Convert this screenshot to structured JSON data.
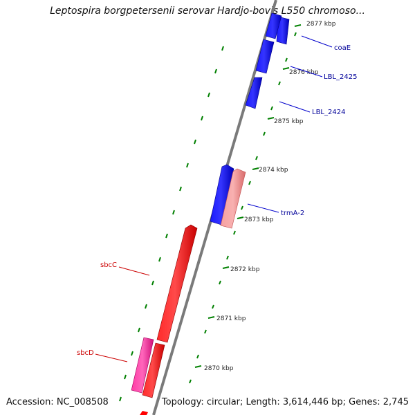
{
  "header": {
    "title": "Leptospira borgpetersenii serovar Hardjo-bovis L550 chromoso..."
  },
  "footer": {
    "accession": "Accession: NC_008508",
    "summary": "Topology: circular; Length: 3,614,446 bp; Genes: 2,745"
  },
  "colors": {
    "forward_gene": "#ff0000",
    "reverse_gene": "#0000ff",
    "rna": "#ff1493",
    "pseudo": "#f08080",
    "tick": "#008000",
    "backbone": "#808080",
    "label_forward": "#cc0000",
    "label_reverse": "#000099"
  },
  "scale": {
    "unit": "kbp",
    "labels": [
      "2877 kbp",
      "2876 kbp",
      "2875 kbp",
      "2874 kbp",
      "2873 kbp",
      "2872 kbp",
      "2871 kbp",
      "2870 kbp"
    ]
  },
  "gene_labels": [
    {
      "text": "coaE",
      "strand": "reverse"
    },
    {
      "text": "LBL_2425",
      "strand": "reverse"
    },
    {
      "text": "LBL_2424",
      "strand": "reverse"
    },
    {
      "text": "trmA-2",
      "strand": "reverse"
    },
    {
      "text": "sbcC",
      "strand": "forward"
    },
    {
      "text": "sbcD",
      "strand": "forward"
    }
  ]
}
